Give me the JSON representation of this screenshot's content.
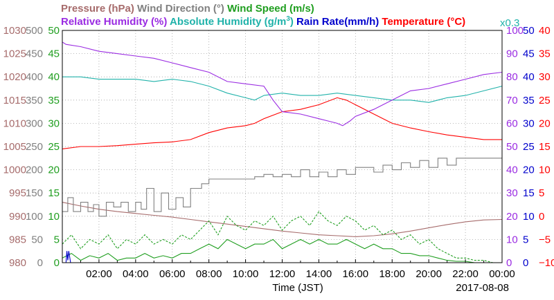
{
  "chart_data": {
    "type": "line",
    "legend": [
      {
        "text": "Pressure (hPa)",
        "color": "#a66b6b"
      },
      {
        "text": "Wind Direction (°)",
        "color": "#808080"
      },
      {
        "text": "Wind Speed (m/s)",
        "color": "#1f9e1f"
      },
      {
        "text": "Relative Humidity (%)",
        "color": "#9a2be2"
      },
      {
        "text": "Absolute Humidity (g/m",
        "sup": "3",
        "tail": ")",
        "color": "#20b2aa"
      },
      {
        "text": "Rain Rate(mm/h)",
        "color": "#0000cc"
      },
      {
        "text": "Temperature (°C)",
        "color": "#ff0000"
      }
    ],
    "abs_humidity_scale": "x0.3",
    "xlabel": "Time (JST)",
    "date": "2017-08-08",
    "x_range": [
      0,
      24
    ],
    "x_ticks": [
      "02:00",
      "04:00",
      "06:00",
      "08:00",
      "10:00",
      "12:00",
      "14:00",
      "16:00",
      "18:00",
      "20:00",
      "22:00",
      "00:00"
    ],
    "axes": {
      "pressure": {
        "min": 980,
        "max": 1030,
        "ticks": [
          "1030",
          "1025",
          "1020",
          "1015",
          "1010",
          "1005",
          "1000",
          "995",
          "990",
          "985",
          "980"
        ],
        "color": "#a66b6b"
      },
      "wind_dir": {
        "min": 0,
        "max": 500,
        "ticks": [
          "500",
          "450",
          "400",
          "350",
          "300",
          "250",
          "200",
          "150",
          "100",
          "50",
          "0"
        ],
        "color": "#808080"
      },
      "wind_speed": {
        "min": 0,
        "max": 50,
        "ticks": [
          "50",
          "45",
          "40",
          "35",
          "30",
          "25",
          "20",
          "15",
          "10",
          "5",
          "0"
        ],
        "color": "#1f9e1f"
      },
      "humidity": {
        "min": 0,
        "max": 100,
        "ticks": [
          "100",
          "90",
          "80",
          "70",
          "60",
          "50",
          "40",
          "30",
          "20",
          "10",
          "0"
        ],
        "color": "#9a2be2"
      },
      "rain": {
        "min": 0,
        "max": 50,
        "ticks": [
          "50",
          "45",
          "40",
          "35",
          "30",
          "25",
          "20",
          "15",
          "10",
          "5",
          "0"
        ],
        "color": "#0000cc"
      },
      "temperature": {
        "min": -10,
        "max": 40,
        "ticks": [
          "40",
          "35",
          "30",
          "25",
          "20",
          "15",
          "10",
          "5",
          "0",
          "−5",
          "−10"
        ],
        "color": "#ff0000"
      }
    },
    "series": [
      {
        "key": "temperature",
        "axis": "temperature",
        "color": "#ff0000",
        "x": [
          0,
          1,
          2,
          3,
          4,
          5,
          6,
          7,
          8,
          9,
          10,
          10.5,
          11,
          12,
          13,
          14,
          15,
          15.5,
          16,
          17,
          18,
          19,
          20,
          21,
          22,
          23,
          24
        ],
        "y": [
          14.5,
          15,
          15,
          15.2,
          15.5,
          15.8,
          16,
          16.5,
          18,
          19,
          19.5,
          20,
          21,
          22.5,
          23,
          24,
          25.5,
          25,
          24,
          22,
          20,
          19,
          18.2,
          17.5,
          17,
          16.5,
          16.5
        ]
      },
      {
        "key": "abs_humidity",
        "axis": "wind_speed",
        "color": "#20b2aa",
        "x": [
          0,
          1,
          2,
          3,
          4,
          5,
          6,
          7,
          8,
          9,
          10,
          10.5,
          11,
          12,
          13,
          14,
          15,
          16,
          17,
          18,
          19,
          20,
          21,
          22,
          23,
          24
        ],
        "y": [
          40,
          40,
          39.5,
          39.5,
          39.5,
          39,
          39.5,
          39,
          38,
          36.5,
          35.5,
          35,
          36,
          36.5,
          36,
          36,
          36.5,
          36,
          35.5,
          35,
          35,
          34.5,
          35.5,
          36,
          37,
          38
        ]
      },
      {
        "key": "relative_humidity",
        "axis": "humidity",
        "color": "#9a2be2",
        "x": [
          0,
          0.2,
          1,
          2,
          3,
          4,
          5,
          6,
          7,
          8,
          9,
          10,
          11,
          11.5,
          12,
          13,
          14,
          14.5,
          15,
          15.3,
          15.7,
          16,
          17,
          18,
          19,
          20,
          21,
          22,
          23,
          24
        ],
        "y": [
          95,
          94,
          93,
          91,
          90,
          89,
          88,
          86,
          84,
          82,
          78,
          77,
          76,
          70,
          65,
          64,
          62,
          61,
          60,
          59,
          61,
          63,
          66,
          70,
          74,
          75,
          77,
          79,
          81,
          82
        ]
      },
      {
        "key": "pressure",
        "axis": "pressure",
        "color": "#a66b6b",
        "x": [
          0,
          1,
          2,
          3,
          4,
          5,
          6,
          7,
          8,
          9,
          10,
          11,
          12,
          13,
          14,
          15,
          16,
          17,
          18,
          19,
          20,
          21,
          22,
          23,
          24
        ],
        "y": [
          993,
          992.2,
          991.5,
          991,
          990.6,
          990.2,
          989.8,
          989.3,
          988.8,
          988.3,
          987.8,
          987.3,
          986.8,
          986.4,
          986,
          985.8,
          985.6,
          985.8,
          986.2,
          986.8,
          987.5,
          988.2,
          988.8,
          989.2,
          989.3
        ]
      },
      {
        "key": "wind_direction",
        "axis": "wind_dir",
        "color": "#808080",
        "x": [
          0,
          0.3,
          0.3,
          0.6,
          0.6,
          1,
          1,
          1.4,
          1.4,
          1.7,
          1.7,
          2,
          2,
          2.4,
          2.4,
          2.8,
          2.8,
          3.2,
          3.2,
          3.6,
          3.6,
          4,
          4,
          4.3,
          4.3,
          4.6,
          4.6,
          5,
          5,
          5.4,
          5.4,
          5.8,
          5.8,
          6.2,
          6.2,
          6.6,
          6.6,
          7,
          7,
          7.6,
          7.6,
          8,
          8,
          10.5,
          10.5,
          11,
          11,
          11.5,
          11.5,
          12,
          12,
          12.5,
          12.5,
          13,
          13,
          13.5,
          13.5,
          14,
          14,
          14.5,
          14.5,
          15,
          15,
          15.5,
          15.5,
          16,
          16,
          17,
          17,
          17.5,
          17.5,
          18,
          18,
          18.5,
          18.5,
          19,
          19,
          19.5,
          19.5,
          20,
          20,
          20.5,
          20.5,
          21,
          21,
          21.5,
          21.5,
          22,
          22,
          24
        ],
        "y": [
          110,
          110,
          140,
          140,
          110,
          110,
          130,
          130,
          110,
          110,
          125,
          125,
          100,
          100,
          130,
          130,
          120,
          120,
          130,
          130,
          110,
          110,
          130,
          130,
          115,
          115,
          160,
          160,
          110,
          110,
          150,
          150,
          115,
          115,
          140,
          140,
          120,
          120,
          160,
          160,
          170,
          170,
          180,
          180,
          185,
          185,
          190,
          190,
          185,
          185,
          190,
          190,
          185,
          185,
          200,
          200,
          185,
          185,
          195,
          195,
          185,
          185,
          200,
          200,
          190,
          190,
          205,
          205,
          195,
          195,
          210,
          210,
          200,
          200,
          215,
          215,
          205,
          205,
          220,
          220,
          205,
          205,
          225,
          225,
          210,
          210,
          225,
          225,
          225,
          225
        ]
      },
      {
        "key": "wind_speed_gust",
        "axis": "wind_speed",
        "color": "#1f9e1f",
        "dashed": true,
        "x": [
          0,
          0.5,
          1,
          1.5,
          2,
          2.5,
          3,
          3.5,
          4,
          4.5,
          5,
          5.5,
          6,
          6.5,
          7,
          7.5,
          8,
          8.5,
          9,
          9.5,
          10,
          10.5,
          11,
          11.5,
          12,
          12.5,
          13,
          13.5,
          14,
          14.5,
          15,
          15.5,
          16,
          16.5,
          17,
          17.5,
          18,
          18.5,
          19,
          19.5,
          20,
          20.5,
          21,
          21.5,
          22,
          22.5,
          23,
          23.5,
          24
        ],
        "y": [
          4,
          6,
          3,
          5,
          4,
          6,
          3,
          5,
          4,
          6,
          4,
          5,
          4,
          6,
          5,
          7,
          9,
          6,
          10,
          8,
          7,
          9,
          8,
          10,
          7,
          9,
          10,
          8,
          11,
          9,
          8,
          10,
          9,
          7,
          8,
          6,
          7,
          5,
          6,
          4,
          5,
          3,
          2,
          1,
          1,
          0.5,
          0.5,
          0,
          0
        ]
      },
      {
        "key": "wind_speed",
        "axis": "wind_speed",
        "color": "#1f9e1f",
        "x": [
          0,
          0.5,
          1,
          1.5,
          2,
          2.5,
          3,
          3.5,
          4,
          4.5,
          5,
          5.5,
          6,
          6.5,
          7,
          7.5,
          8,
          8.5,
          9,
          9.5,
          10,
          10.5,
          11,
          11.5,
          12,
          12.5,
          13,
          13.5,
          14,
          14.5,
          15,
          15.5,
          16,
          16.5,
          17,
          17.5,
          18,
          18.5,
          19,
          19.5,
          20,
          20.5,
          21,
          21.5,
          22,
          22.5,
          23,
          23.5,
          24
        ],
        "y": [
          1,
          2,
          0.5,
          1.5,
          1,
          2,
          0.5,
          1,
          1,
          2,
          1,
          1.5,
          1,
          2,
          2,
          3,
          4,
          3,
          5,
          4,
          3,
          4,
          4,
          5,
          3,
          4,
          5,
          4,
          5,
          4,
          4,
          5,
          4,
          3,
          4,
          3,
          3,
          2,
          2,
          1.5,
          1.5,
          1,
          0.5,
          0.3,
          0.3,
          0,
          0,
          0,
          0
        ]
      },
      {
        "key": "rain_rate",
        "axis": "rain",
        "color": "#0000cc",
        "x": [
          0,
          0.2,
          0.25,
          0.3,
          0.35,
          0.45,
          24
        ],
        "y": [
          0,
          0,
          2.5,
          0.5,
          2.5,
          0,
          0
        ]
      }
    ]
  }
}
